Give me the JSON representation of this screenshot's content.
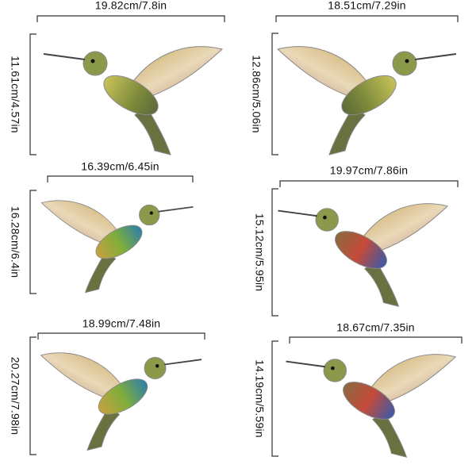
{
  "items": [
    {
      "width_label": "19.82cm/7.8in",
      "height_label": "11.61cm/4.57in"
    },
    {
      "width_label": "18.51cm/7.29in",
      "height_label": "12.86cm/5.06in"
    },
    {
      "width_label": "16.39cm/6.45in",
      "height_label": "16.28cm/6.4in"
    },
    {
      "width_label": "19.97cm/7.86in",
      "height_label": "15.12cm/5.95in"
    },
    {
      "width_label": "18.99cm/7.48in",
      "height_label": "20.27cm/7.98in"
    },
    {
      "width_label": "18.67cm/7.35in",
      "height_label": "14.19cm/5.59in"
    }
  ]
}
